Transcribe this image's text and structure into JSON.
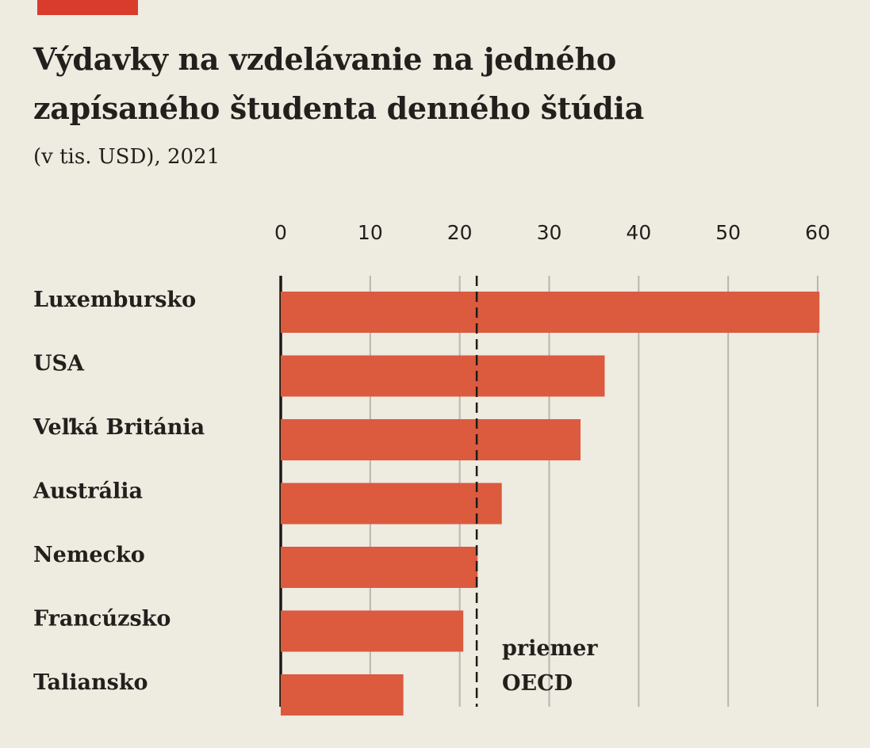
{
  "header": {
    "title_line1": "Výdavky na vzdelávanie na jedného",
    "title_line2": "zapísaného študenta denného štúdia",
    "subtitle": "(v tis. USD), 2021"
  },
  "colors": {
    "accent": "#d93c2c",
    "bar": "#dc5a3e",
    "background": "#eeebe1",
    "text": "#231f1c",
    "grid": "#b9b6ae"
  },
  "chart_data": {
    "type": "bar",
    "orientation": "horizontal",
    "title": "Výdavky na vzdelávanie na jedného zapísaného študenta denného štúdia",
    "subtitle": "(v tis. USD), 2021",
    "xlabel": "",
    "ylabel": "",
    "xlim": [
      0,
      60
    ],
    "xticks": [
      0,
      10,
      20,
      30,
      40,
      50,
      60
    ],
    "tick_labels": [
      "0",
      "10",
      "20",
      "30",
      "40",
      "50",
      "60"
    ],
    "grid": true,
    "categories": [
      "Luxembursko",
      "USA",
      "Veľká Británia",
      "Austrália",
      "Nemecko",
      "Francúzsko",
      "Taliansko"
    ],
    "values": [
      60.2,
      36.2,
      33.5,
      24.7,
      22.0,
      20.4,
      13.7
    ],
    "reference_line": {
      "value": 21.9,
      "style": "dashed",
      "label_line1": "priemer",
      "label_line2": "OECD"
    }
  }
}
